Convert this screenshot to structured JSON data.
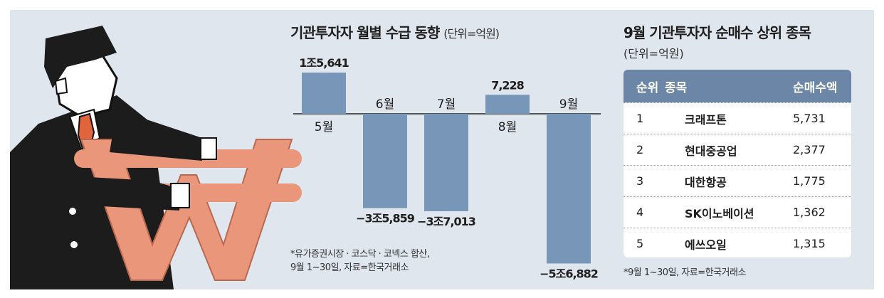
{
  "chart_data": {
    "type": "bar",
    "title": "기관투자자 월별 수급 동향",
    "unit_label": "(단위=억원)",
    "categories": [
      "5월",
      "6월",
      "7월",
      "8월",
      "9월"
    ],
    "values": [
      15641,
      -35859,
      -37013,
      7228,
      -56882
    ],
    "value_labels": [
      "1조5,641",
      "−3조5,859",
      "−3조7,013",
      "7,228",
      "−5조6,882"
    ],
    "ylim": [
      -60000,
      20000
    ],
    "grid": false,
    "colors": {
      "bar": "#7896b8",
      "baseline": "#555555"
    },
    "note_lines": [
      "*유가증권시장 · 코스닥 · 코넥스 합산,",
      "9월 1~30일, 자료=한국거래소"
    ]
  },
  "ranking": {
    "title": "9월 기관투자자 순매수 상위 종목",
    "unit_label": "(단위=억원)",
    "headers": {
      "rank": "순위",
      "name": "종목",
      "amount": "순매수액"
    },
    "rows": [
      {
        "rank": "1",
        "name": "크래프톤",
        "amount": "5,731"
      },
      {
        "rank": "2",
        "name": "현대중공업",
        "amount": "2,377"
      },
      {
        "rank": "3",
        "name": "대한항공",
        "amount": "1,775"
      },
      {
        "rank": "4",
        "name": "SK이노베이션",
        "amount": "1,362"
      },
      {
        "rank": "5",
        "name": "에쓰오일",
        "amount": "1,315"
      }
    ],
    "note": "*9월 1~30일, 자료=한국거래소",
    "header_color": "#6b86a6"
  },
  "illustration": {
    "icon": "businessman-holding-won-sign-icon",
    "colors": {
      "won_sign": "#e9967a",
      "suit": "#1c1c1c",
      "tie": "#e0643c"
    }
  }
}
